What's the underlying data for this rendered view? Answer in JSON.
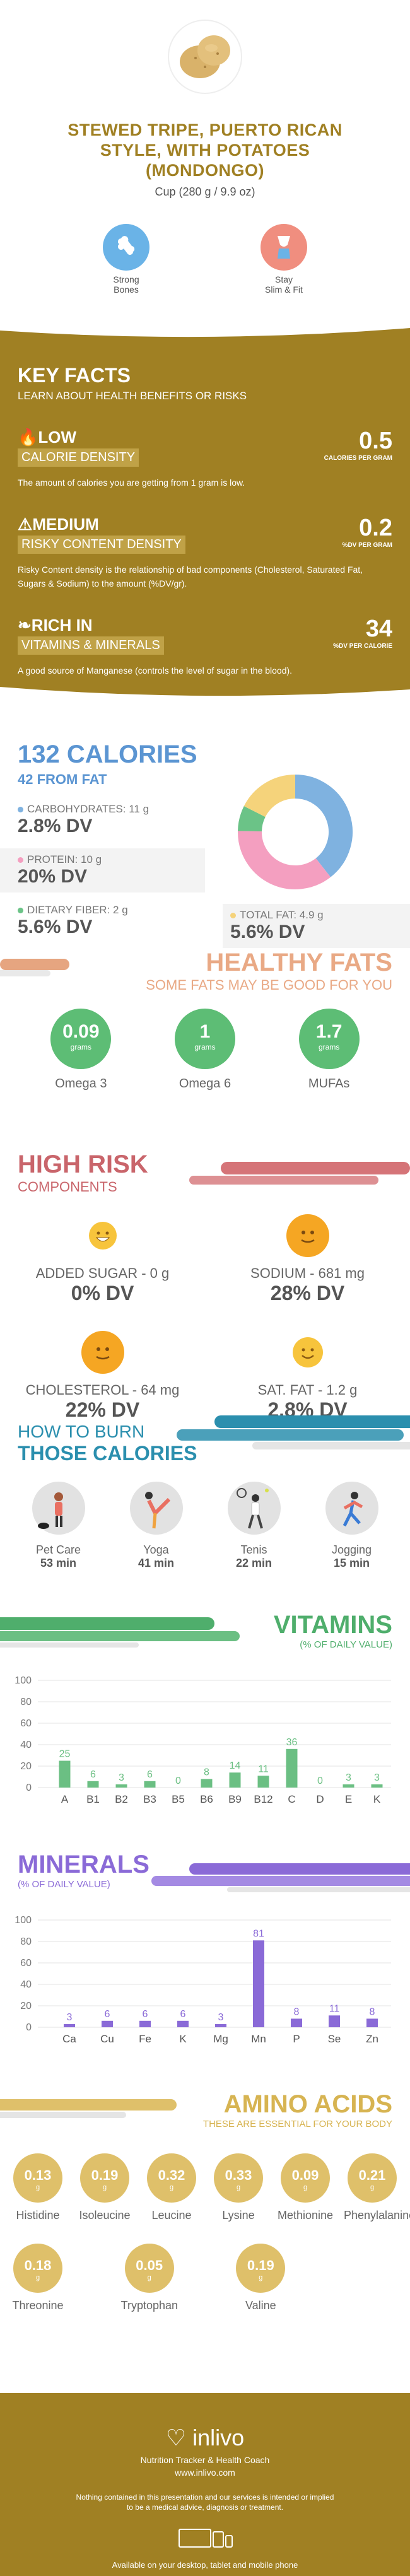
{
  "header": {
    "title_lines": [
      "STEWED TRIPE, PUERTO RICAN",
      "STYLE, WITH POTATOES",
      "(MONDONGO)"
    ],
    "serving": "Cup (280 g / 9.9 oz)",
    "benefits": [
      {
        "icon": "bone-icon",
        "label_1": "Strong",
        "label_2": "Bones",
        "color": "#6ab3e7"
      },
      {
        "icon": "slim-figure-icon",
        "label_1": "Stay",
        "label_2": "Slim & Fit",
        "color": "#f08e7f"
      }
    ]
  },
  "key_facts": {
    "title": "KEY FACTS",
    "subtitle": "LEARN ABOUT HEALTH BENEFITS OR RISKS",
    "items": [
      {
        "icon": "flame-icon",
        "big": "LOW",
        "small": "CALORIE DENSITY",
        "value": "0.5",
        "unit": "CALORIES PER GRAM",
        "desc": "The amount of calories you are getting from 1 gram is low."
      },
      {
        "icon": "warning-icon",
        "big": "MEDIUM",
        "small": "RISKY CONTENT DENSITY",
        "value": "0.2",
        "unit": "%DV PER GRAM",
        "desc": "Risky Content density is the relationship of bad components (Cholesterol, Saturated Fat, Sugars & Sodium) to the amount (%DV/gr)."
      },
      {
        "icon": "leaf-icon",
        "big": "RICH  IN",
        "small": "VITAMINS & MINERALS",
        "value": "34",
        "unit": "%DV PER CALORIE",
        "desc": "A good source of Manganese (controls the level of sugar in the blood)."
      }
    ]
  },
  "calories": {
    "title": "132 CALORIES",
    "subtitle": "42 FROM FAT",
    "macros": [
      {
        "label": "CARBOHYDRATES: 11 g",
        "value": "2.8% DV",
        "color": "#7fb2e0"
      },
      {
        "label": "PROTEIN: 10 g",
        "value": "20% DV",
        "color": "#f49fc0"
      },
      {
        "label": "DIETARY FIBER: 2 g",
        "value": "5.6% DV",
        "color": "#6bc387"
      },
      {
        "label": "TOTAL FAT: 4.9 g",
        "value": "5.6% DV",
        "color": "#f5d37b"
      }
    ]
  },
  "chart_data": [
    {
      "type": "pie",
      "categories": [
        "Carbohydrates",
        "Protein",
        "Dietary Fiber",
        "Total Fat"
      ],
      "values": [
        11,
        10,
        2,
        4.9
      ],
      "colors": [
        "#7fb2e0",
        "#f49fc0",
        "#6bc387",
        "#f5d37b"
      ]
    },
    {
      "type": "bar",
      "categories": [
        "A",
        "B1",
        "B2",
        "B3",
        "B5",
        "B6",
        "B9",
        "B12",
        "C",
        "D",
        "E",
        "K"
      ],
      "values": [
        25,
        6,
        3,
        6,
        0,
        8,
        14,
        11,
        36,
        0,
        3,
        3
      ],
      "ylim": [
        0,
        100
      ],
      "yticks": [
        0,
        20,
        40,
        60,
        80,
        100
      ],
      "color": "#6bbf83"
    },
    {
      "type": "bar",
      "categories": [
        "Ca",
        "Cu",
        "Fe",
        "K",
        "Mg",
        "Mn",
        "P",
        "Se",
        "Zn"
      ],
      "values": [
        3,
        6,
        6,
        6,
        3,
        81,
        8,
        11,
        8
      ],
      "ylim": [
        0,
        100
      ],
      "yticks": [
        0,
        20,
        40,
        60,
        80,
        100
      ],
      "color": "#8a6ad7"
    }
  ],
  "healthy_fats": {
    "title": "HEALTHY FATS",
    "subtitle": "SOME FATS MAY BE GOOD FOR YOU",
    "items": [
      {
        "value": "0.09",
        "unit": "grams",
        "name": "Omega 3"
      },
      {
        "value": "1",
        "unit": "grams",
        "name": "Omega 6"
      },
      {
        "value": "1.7",
        "unit": "grams",
        "name": "MUFAs"
      }
    ]
  },
  "high_risk": {
    "title": "HIGH RISK",
    "subtitle": "COMPONENTS",
    "items": [
      {
        "label": "ADDED SUGAR - 0 g",
        "value": "0% DV",
        "face": "happy-face-icon"
      },
      {
        "label": "SODIUM - 681 mg",
        "value": "28% DV",
        "face": "neutral-face-icon"
      },
      {
        "label": "CHOLESTEROL - 64 mg",
        "value": "22% DV",
        "face": "neutral-face-icon"
      },
      {
        "label": "SAT. FAT - 1.2 g",
        "value": "2.8% DV",
        "face": "smile-face-icon"
      }
    ]
  },
  "burn": {
    "title_1": "HOW TO BURN",
    "title_2": "THOSE CALORIES",
    "items": [
      {
        "name": "Pet Care",
        "minutes": "53 min"
      },
      {
        "name": "Yoga",
        "minutes": "41 min"
      },
      {
        "name": "Tenis",
        "minutes": "22 min"
      },
      {
        "name": "Jogging",
        "minutes": "15 min"
      }
    ]
  },
  "vitamins": {
    "title": "VITAMINS",
    "subtitle": "(% OF DAILY VALUE)"
  },
  "minerals": {
    "title": "MINERALS",
    "subtitle": "(% OF DAILY VALUE)"
  },
  "amino": {
    "title": "AMINO ACIDS",
    "subtitle": "THESE ARE ESSENTIAL FOR YOUR BODY",
    "unit": "g",
    "items": [
      {
        "value": "0.13",
        "name": "Histidine"
      },
      {
        "value": "0.19",
        "name": "Isoleucine"
      },
      {
        "value": "0.32",
        "name": "Leucine"
      },
      {
        "value": "0.33",
        "name": "Lysine"
      },
      {
        "value": "0.09",
        "name": "Methionine"
      },
      {
        "value": "0.21",
        "name": "Phenylalanine"
      },
      {
        "value": "0.18",
        "name": "Threonine"
      },
      {
        "value": "0.05",
        "name": "Tryptophan"
      },
      {
        "value": "0.19",
        "name": "Valine"
      }
    ]
  },
  "footer": {
    "brand": "inlivo",
    "tagline": "Nutrition Tracker & Health Coach",
    "url": "www.inlivo.com",
    "disclaimer_1": "Nothing contained in this presentation and our services is intended or implied",
    "disclaimer_2": "to be a medical advice, diagnosis or treatment.",
    "devices": "Available on your desktop, tablet and mobile phone"
  }
}
